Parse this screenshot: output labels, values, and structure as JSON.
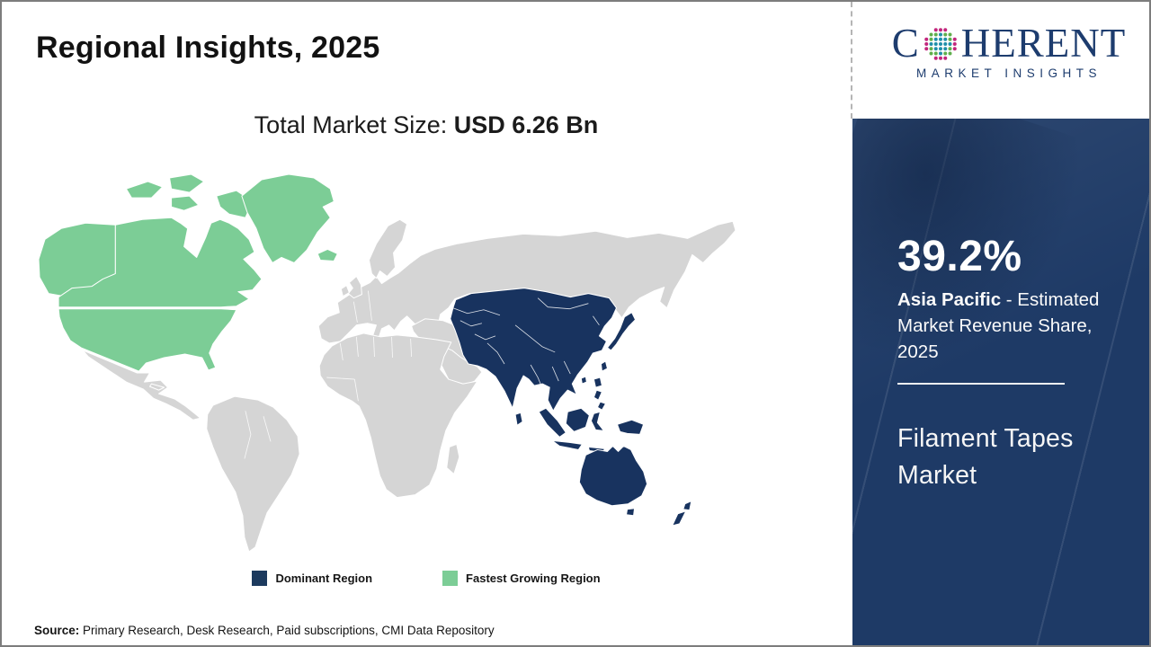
{
  "title": "Regional Insights, 2025",
  "logo": {
    "letter_c": "C",
    "letters_rest": "HERENT",
    "tagline": "MARKET INSIGHTS"
  },
  "market_size": {
    "label": "Total Market Size: ",
    "value": "USD 6.26 Bn"
  },
  "map": {
    "colors": {
      "dominant": "#18335f",
      "fastest": "#7ccd96",
      "other": "#d5d5d5",
      "border": "#ffffff"
    },
    "regions": [
      {
        "name": "Asia Pacific",
        "classification": "Dominant Region"
      },
      {
        "name": "North America",
        "classification": "Fastest Growing Region"
      },
      {
        "name": "Rest of World",
        "classification": "Other"
      }
    ]
  },
  "legend": {
    "dominant": {
      "label": "Dominant Region",
      "color": "#1c3a5e"
    },
    "fastest": {
      "label": "Fastest Growing Region",
      "color": "#7ccd96"
    }
  },
  "sidebar": {
    "stat_value": "39.2%",
    "stat_region": "Asia Pacific",
    "stat_desc": " - Estimated Market Revenue Share, 2025",
    "market_name": "Filament Tapes Market"
  },
  "source": {
    "label": "Source:",
    "text": " Primary Research, Desk Research, Paid subscriptions, CMI Data Repository"
  }
}
